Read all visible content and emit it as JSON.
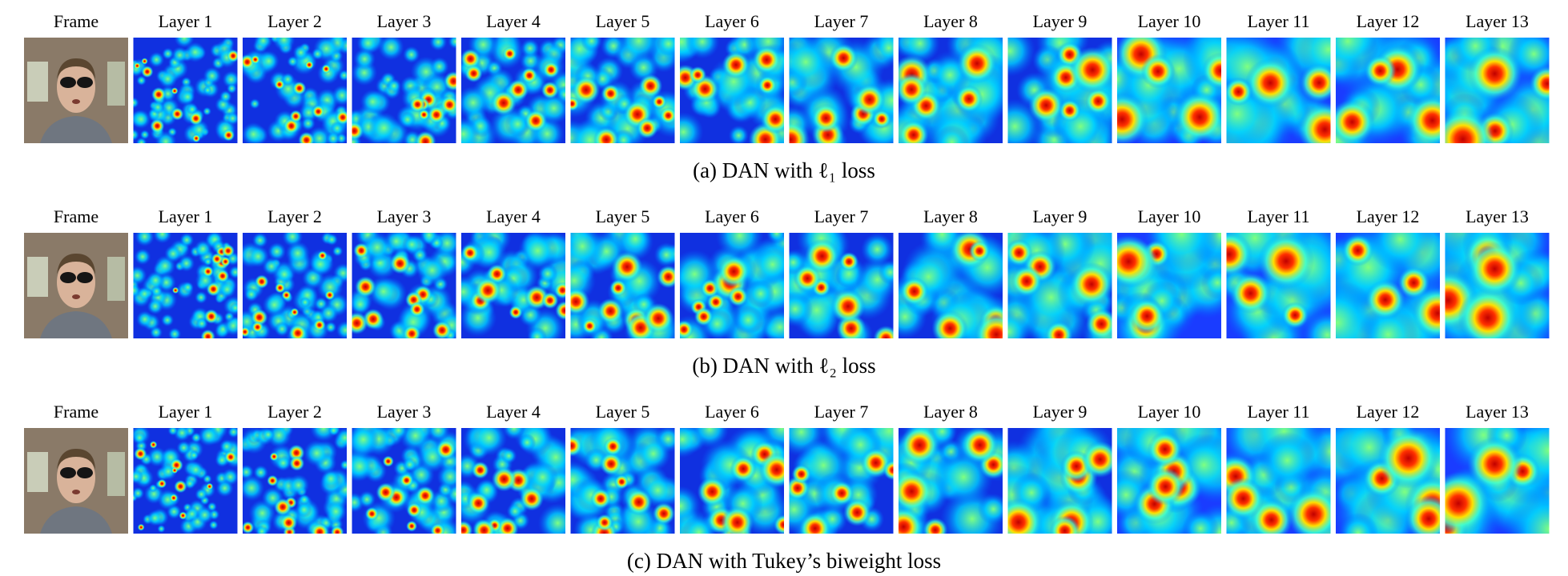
{
  "rows": [
    {
      "labels": [
        "Frame",
        "Layer 1",
        "Layer 2",
        "Layer 3",
        "Layer 4",
        "Layer 5",
        "Layer 6",
        "Layer 7",
        "Layer 8",
        "Layer 9",
        "Layer 10",
        "Layer 11",
        "Layer 12",
        "Layer 13"
      ],
      "caption": "(a)  DAN with ℓ₁ loss"
    },
    {
      "labels": [
        "Frame",
        "Layer 1",
        "Layer 2",
        "Layer 3",
        "Layer 4",
        "Layer 5",
        "Layer 6",
        "Layer 7",
        "Layer 8",
        "Layer 9",
        "Layer 10",
        "Layer 11",
        "Layer 12",
        "Layer 13"
      ],
      "caption": "(b)  DAN with ℓ₂ loss"
    },
    {
      "labels": [
        "Frame",
        "Layer 1",
        "Layer 2",
        "Layer 3",
        "Layer 4",
        "Layer 5",
        "Layer 6",
        "Layer 7",
        "Layer 8",
        "Layer 9",
        "Layer 10",
        "Layer 11",
        "Layer 12",
        "Layer 13"
      ],
      "caption": "(c)  DAN with Tukey’s biweight loss"
    }
  ]
}
